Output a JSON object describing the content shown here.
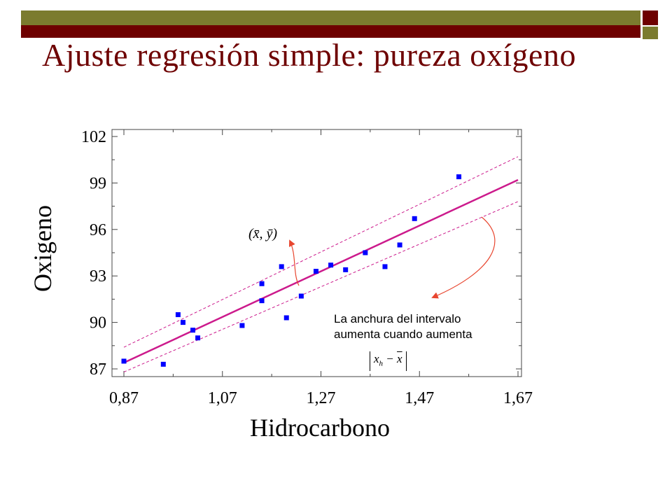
{
  "slide": {
    "title": "Ajuste regresión simple: pureza oxígeno",
    "colors": {
      "top_bar": "#7b7b2e",
      "sub_bar": "#6e0000",
      "title": "#6e0000"
    }
  },
  "chart_data": {
    "type": "scatter",
    "title": "",
    "xlabel": "Hidrocarbono",
    "ylabel": "Oxigeno",
    "xlim": [
      0.87,
      1.67
    ],
    "ylim": [
      87,
      102
    ],
    "x_ticks": [
      "0,87",
      "1,07",
      "1,27",
      "1,47",
      "1,67"
    ],
    "y_ticks": [
      "87",
      "90",
      "93",
      "96",
      "99",
      "102"
    ],
    "grid": false,
    "series": [
      {
        "kind": "points",
        "color": "#0000ff",
        "x": [
          0.87,
          0.95,
          0.98,
          0.99,
          1.01,
          1.02,
          1.11,
          1.15,
          1.15,
          1.19,
          1.2,
          1.23,
          1.26,
          1.29,
          1.32,
          1.36,
          1.4,
          1.43,
          1.46,
          1.55
        ],
        "y": [
          87.5,
          87.3,
          90.5,
          90.0,
          89.5,
          89.0,
          89.8,
          92.5,
          91.4,
          93.6,
          90.3,
          91.7,
          93.3,
          93.7,
          93.4,
          94.5,
          93.6,
          95.0,
          96.7,
          99.4
        ]
      },
      {
        "kind": "fit-line",
        "color": "#cc1a8c",
        "x": [
          0.87,
          1.67
        ],
        "y": [
          87.4,
          99.2
        ]
      },
      {
        "kind": "confidence-band",
        "color": "#cc1a8c",
        "upper": {
          "x": [
            0.87,
            1.67
          ],
          "y": [
            88.4,
            100.7
          ]
        },
        "lower": {
          "x": [
            0.87,
            1.67
          ],
          "y": [
            86.8,
            97.8
          ]
        }
      }
    ],
    "annotations": {
      "centroid_label": "(x̄, ȳ)",
      "interval_note": [
        "La anchura del intervalo",
        "aumenta cuando aumenta"
      ],
      "interval_term": {
        "var": "x",
        "sub": "h",
        "op": " − ",
        "mean": "x"
      },
      "arrow_color": "#e8462f"
    }
  }
}
